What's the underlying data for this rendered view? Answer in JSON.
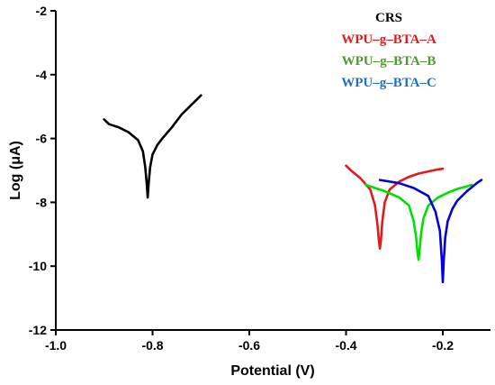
{
  "chart_data": {
    "type": "line",
    "xlabel": "Potential (V)",
    "ylabel": "Log (μA)",
    "xlim": [
      -1.0,
      -0.1
    ],
    "ylim": [
      -12,
      -2
    ],
    "xticks": [
      -1.0,
      -0.8,
      -0.6,
      -0.4,
      -0.2
    ],
    "xtick_labels": [
      "-1.0",
      "-0.8",
      "-0.6",
      "-0.4",
      "-0.2"
    ],
    "yticks": [
      -12,
      -10,
      -8,
      -6,
      -4,
      -2
    ],
    "ytick_labels": [
      "-12",
      "-10",
      "-8",
      "-6",
      "-4",
      "-2"
    ],
    "grid": false,
    "legend_position": "top-right",
    "series": [
      {
        "name": "CRS",
        "color": "#000000",
        "x": [
          -0.9,
          -0.89,
          -0.87,
          -0.85,
          -0.83,
          -0.82,
          -0.815,
          -0.812,
          -0.81,
          -0.808,
          -0.805,
          -0.8,
          -0.79,
          -0.78,
          -0.76,
          -0.74,
          -0.72,
          -0.7
        ],
        "y": [
          -5.4,
          -5.55,
          -5.65,
          -5.8,
          -6.05,
          -6.4,
          -6.9,
          -7.4,
          -7.85,
          -7.4,
          -6.9,
          -6.5,
          -6.2,
          -6.0,
          -5.65,
          -5.25,
          -4.95,
          -4.65
        ]
      },
      {
        "name": "WPU–g–BTA–A",
        "color": "#e31a1c",
        "x": [
          -0.4,
          -0.39,
          -0.37,
          -0.35,
          -0.34,
          -0.335,
          -0.332,
          -0.33,
          -0.328,
          -0.325,
          -0.32,
          -0.31,
          -0.29,
          -0.27,
          -0.25,
          -0.23,
          -0.21,
          -0.2
        ],
        "y": [
          -6.85,
          -7.0,
          -7.25,
          -7.6,
          -8.1,
          -8.7,
          -9.2,
          -9.45,
          -9.2,
          -8.6,
          -8.0,
          -7.6,
          -7.35,
          -7.2,
          -7.1,
          -7.03,
          -6.97,
          -6.95
        ]
      },
      {
        "name": "WPU–g–BTA–B",
        "color": "#00e000",
        "x": [
          -0.36,
          -0.34,
          -0.32,
          -0.29,
          -0.27,
          -0.26,
          -0.255,
          -0.252,
          -0.25,
          -0.248,
          -0.245,
          -0.24,
          -0.23,
          -0.21,
          -0.19,
          -0.17,
          -0.15,
          -0.14
        ],
        "y": [
          -7.45,
          -7.55,
          -7.65,
          -7.85,
          -8.1,
          -8.6,
          -9.1,
          -9.6,
          -9.8,
          -9.5,
          -9.0,
          -8.5,
          -8.1,
          -7.85,
          -7.7,
          -7.58,
          -7.5,
          -7.45
        ]
      },
      {
        "name": "WPU–g–BTA–C",
        "color": "#0000e0",
        "x": [
          -0.33,
          -0.31,
          -0.29,
          -0.26,
          -0.23,
          -0.215,
          -0.206,
          -0.202,
          -0.2,
          -0.198,
          -0.195,
          -0.19,
          -0.18,
          -0.17,
          -0.15,
          -0.13,
          -0.12
        ],
        "y": [
          -7.3,
          -7.35,
          -7.4,
          -7.55,
          -7.8,
          -8.3,
          -8.9,
          -9.8,
          -10.5,
          -9.8,
          -9.1,
          -8.6,
          -8.2,
          -7.95,
          -7.65,
          -7.4,
          -7.3
        ]
      }
    ],
    "legend": [
      {
        "label": "CRS",
        "color": "#000000"
      },
      {
        "label": "WPU–g–BTA–A",
        "color": "#e31a1c"
      },
      {
        "label": "WPU–g–BTA–B",
        "color": "#4e9a2e"
      },
      {
        "label": "WPU–g–BTA–C",
        "color": "#1f6fc2"
      }
    ]
  }
}
